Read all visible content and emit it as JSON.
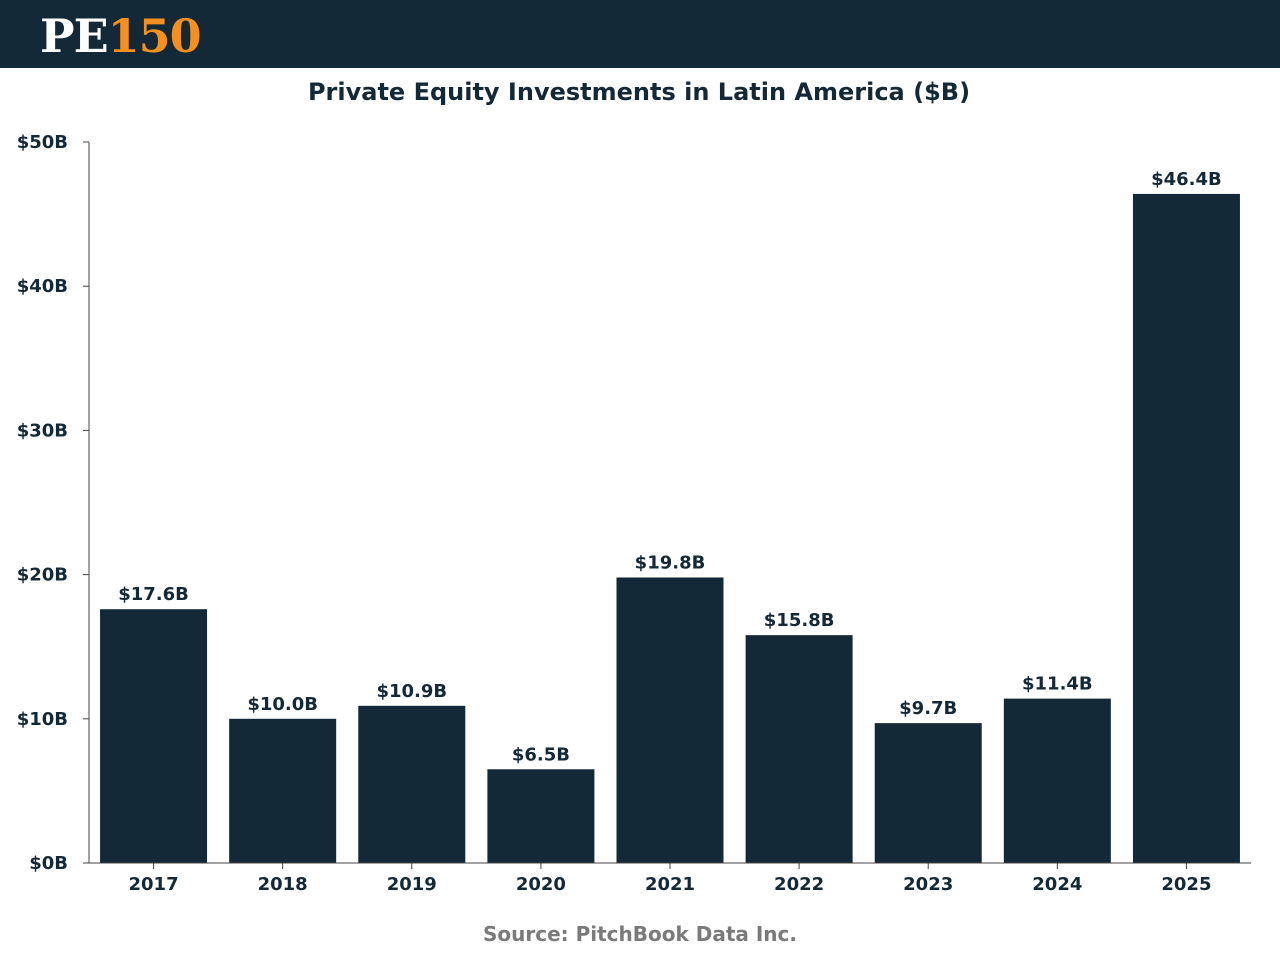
{
  "header": {
    "logo_pe": "PE",
    "logo_num": "150",
    "logo_pe_color": "#ffffff",
    "logo_num_color": "#f5901f",
    "background": "#142937"
  },
  "chart_data": {
    "type": "bar",
    "title": "Private Equity Investments in Latin America ($B)",
    "xlabel": "",
    "ylabel": "",
    "categories": [
      "2017",
      "2018",
      "2019",
      "2020",
      "2021",
      "2022",
      "2023",
      "2024",
      "2025"
    ],
    "values": [
      17.6,
      10.0,
      10.9,
      6.5,
      19.8,
      15.8,
      9.7,
      11.4,
      46.4
    ],
    "data_labels": [
      "$17.6B",
      "$10.0B",
      "$10.9B",
      "$6.5B",
      "$19.8B",
      "$15.8B",
      "$9.7B",
      "$11.4B",
      "$46.4B"
    ],
    "ylim": [
      0,
      50
    ],
    "yticks": [
      0,
      10,
      20,
      30,
      40,
      50
    ],
    "ytick_labels": [
      "$0B",
      "$10B",
      "$20B",
      "$30B",
      "$40B",
      "$50B"
    ],
    "grid": false,
    "bar_color": "#142937"
  },
  "source": "Source: PitchBook Data Inc."
}
